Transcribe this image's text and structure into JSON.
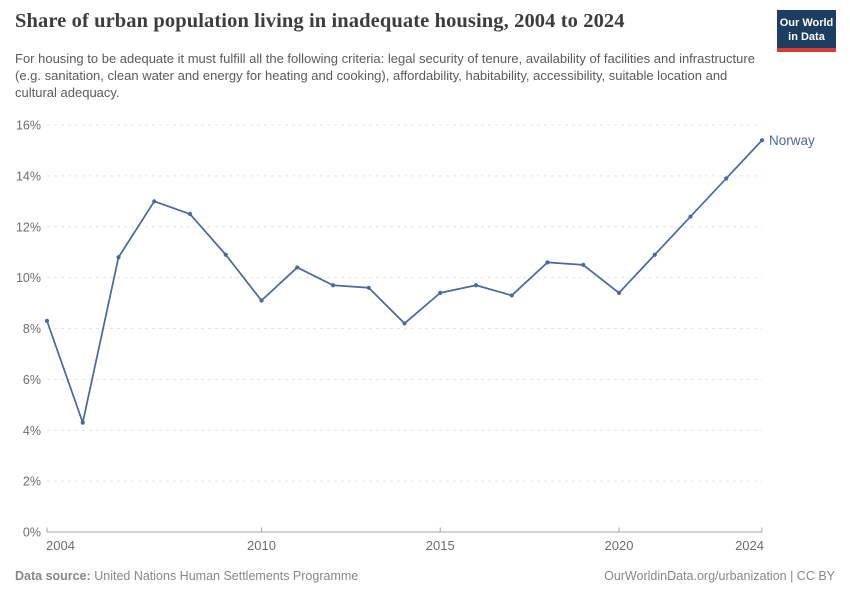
{
  "header": {
    "title": "Share of urban population living in inadequate housing, 2004 to 2024",
    "subtitle": "For housing to be adequate it must fulfill all the following criteria: legal security of tenure, availability of facilities and infrastructure (e.g. sanitation, clean water and energy for heating and cooking), affordability, habitability, accessibility, suitable location and cultural adequacy.",
    "logo": {
      "line1": "Our World",
      "line2": "in Data",
      "bg_color": "#1d3d63",
      "accent_color": "#d73c32",
      "text_color": "#ffffff"
    }
  },
  "chart_data": {
    "type": "line",
    "title": "Share of urban population living in inadequate housing, 2004 to 2024",
    "x": [
      2004,
      2005,
      2006,
      2007,
      2008,
      2009,
      2010,
      2011,
      2012,
      2013,
      2014,
      2015,
      2016,
      2017,
      2018,
      2019,
      2020,
      2021,
      2022,
      2023,
      2024
    ],
    "series": [
      {
        "name": "Norway",
        "color": "#4C6A9C",
        "values": [
          8.3,
          4.3,
          10.8,
          13.0,
          12.5,
          10.9,
          9.1,
          10.4,
          9.7,
          9.6,
          8.2,
          9.4,
          9.7,
          9.3,
          10.6,
          10.5,
          9.4,
          10.9,
          12.4,
          13.9,
          15.4
        ]
      }
    ],
    "end_label": "Norway",
    "xlim": [
      2004,
      2024
    ],
    "ylim": [
      0,
      16
    ],
    "x_ticks": [
      2004,
      2010,
      2015,
      2020,
      2024
    ],
    "y_ticks": [
      0,
      2,
      4,
      6,
      8,
      10,
      12,
      14,
      16
    ],
    "y_tick_suffix": "%",
    "grid": "horizontal-dashed",
    "legend_position": "end-of-line",
    "markers": true
  },
  "footer": {
    "source_label": "Data source:",
    "source_text": "United Nations Human Settlements Programme",
    "attribution": "OurWorldinData.org/urbanization | CC BY"
  },
  "colors": {
    "series_blue": "#4C6A9C",
    "grid_line": "#e4e4e4",
    "axis_line": "#a5a5a5",
    "tick_label": "#6e6e6e",
    "title_text": "#3d3d3d",
    "subtitle_text": "#5b5b5b",
    "footer_text": "#888888",
    "background": "#ffffff"
  }
}
